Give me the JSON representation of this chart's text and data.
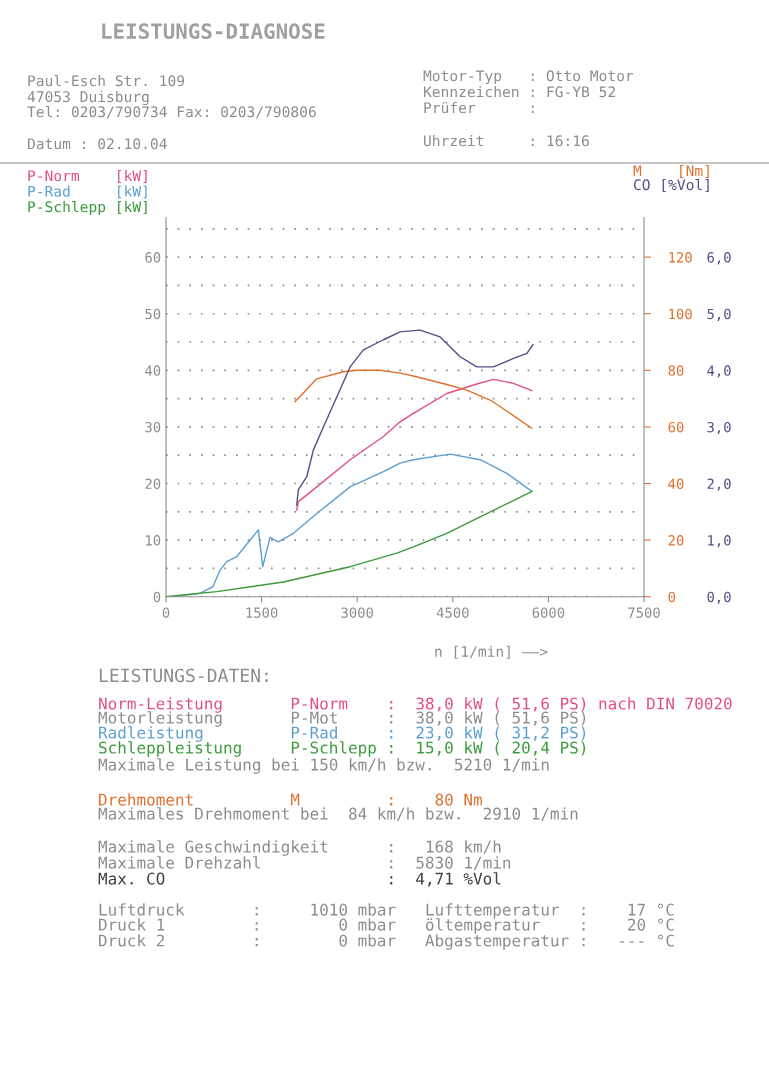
{
  "chart_data": {
    "type": "line",
    "title": "LEISTUNGS-DIAGNOSE",
    "xlabel": "n [1/min] ——>",
    "xlim": [
      0,
      7500
    ],
    "xticks": [
      0,
      1500,
      3000,
      4500,
      6000,
      7500
    ],
    "ylim": [
      0,
      67
    ],
    "yticks": [
      0,
      {
        "value": 5,
        "label": null
      },
      10,
      {
        "value": 15,
        "label": null
      },
      20,
      {
        "value": 25,
        "label": null
      },
      30,
      {
        "value": 35,
        "label": null
      },
      40,
      {
        "value": 45,
        "label": null
      },
      50,
      {
        "value": 55,
        "label": null
      },
      60,
      {
        "value": 65,
        "label": null
      }
    ],
    "y2lim": [
      0,
      134
    ],
    "y2ticks": [
      0,
      20,
      40,
      60,
      80,
      100,
      120
    ],
    "y3lim": [
      0,
      6.7
    ],
    "y3ticks": [
      {
        "value": 0,
        "label": "0,0"
      },
      {
        "value": 1,
        "label": "1,0"
      },
      {
        "value": 2,
        "label": "2,0"
      },
      {
        "value": 3,
        "label": "3,0"
      },
      {
        "value": 4,
        "label": "4,0"
      },
      {
        "value": 5,
        "label": "5,0"
      },
      {
        "value": 6,
        "label": "6,0"
      }
    ],
    "grid": "y",
    "legend": "top",
    "marker": "none",
    "line_style": "solid",
    "series": [
      {
        "name": "P-Norm    [kW]",
        "color": "#e0507a",
        "x": [
          2051,
          2077,
          2366,
          2889,
          3412,
          3673,
          3882,
          4406,
          4824,
          5138,
          5452,
          5741
        ],
        "values": [
          15.3,
          16.8,
          19.4,
          24.2,
          28.3,
          30.9,
          32.4,
          35.9,
          37.4,
          38.4,
          37.7,
          36.4
        ]
      },
      {
        "name": "P-Rad     [kW]",
        "color": "#5a9fd0",
        "x": [
          63,
          534,
          738,
          848,
          953,
          1110,
          1449,
          1518,
          1633,
          1763,
          2000,
          2366,
          2889,
          3412,
          3673,
          3882,
          4458,
          4929,
          5348,
          5741
        ],
        "values": [
          0,
          0.6,
          1.8,
          4.7,
          6.2,
          7.1,
          11.8,
          5.3,
          10.5,
          9.7,
          11.2,
          14.7,
          19.4,
          22.1,
          23.6,
          24.2,
          25.2,
          24.2,
          21.8,
          18.6
        ]
      },
      {
        "name": "P-Schlepp [kW]",
        "color": "#3a9a3a",
        "x": [
          0,
          796,
          1842,
          2889,
          3621,
          3882,
          4406,
          4929,
          5741
        ],
        "values": [
          0,
          0.9,
          2.6,
          5.3,
          7.7,
          8.8,
          11.2,
          14.1,
          18.6
        ]
      },
      {
        "name": "M    [Nm]",
        "color": "#e07030",
        "axis": "y2",
        "x": [
          2025,
          2155,
          2366,
          2784,
          2993,
          3360,
          3673,
          3882,
          4406,
          4720,
          5086,
          5452,
          5741
        ],
        "values": [
          69,
          72,
          77,
          79.5,
          80,
          80,
          79,
          78,
          75,
          73,
          69.5,
          64,
          59.5
        ]
      },
      {
        "name": "CO [%Vol]",
        "color": "#5a4a8a",
        "axis": "y3",
        "x": [
          2051,
          2077,
          2209,
          2312,
          2469,
          2680,
          2889,
          3097,
          3412,
          3673,
          3987,
          4301,
          4615,
          4876,
          5138,
          5452,
          5662,
          5757
        ],
        "values": [
          1.62,
          1.89,
          2.12,
          2.59,
          3.0,
          3.53,
          4.06,
          4.36,
          4.54,
          4.68,
          4.71,
          4.59,
          4.24,
          4.06,
          4.06,
          4.21,
          4.3,
          4.45
        ]
      }
    ],
    "annotations": [
      "Paul-Esch Str. 109",
      "47053 Duisburg",
      "Tel: 0203/790734 Fax: 0203/790806",
      "Datum : 02.10.04",
      "Motor-Typ   : Otto Motor",
      "Kennzeichen : FG-YB 52",
      "Prüfer      :",
      "Uhrzeit     : 16:16",
      "LEISTUNGS-DATEN:",
      "Norm-Leistung       P-Norm    :  38,0 kW ( 51,6 PS) nach DIN 70020",
      "Motorleistung       P-Mot     :  38,0 kW ( 51,6 PS)",
      "Radleistung         P-Rad     :  23,0 kW ( 31,2 PS)",
      "Schleppleistung     P-Schlepp :  15,0 kW ( 20,4 PS)",
      "Maximale Leistung bei 150 km/h bzw.  5210 1/min",
      "Drehmoment          M         :    80 Nm",
      "Maximales Drehmoment bei  84 km/h bzw.  2910 1/min",
      "Maximale Geschwindigkeit      :   168 km/h",
      "Maximale Drehzahl             :  5830 1/min",
      "Max. CO                       :  4,71 %Vol",
      "Luftdruck       :     1010 mbar   Lufttemperatur  :    17 °C",
      "Druck 1         :        0 mbar   öltemperatur    :    20 °C",
      "Druck 2         :        0 mbar   Abgastemperatur :   --- °C"
    ]
  }
}
